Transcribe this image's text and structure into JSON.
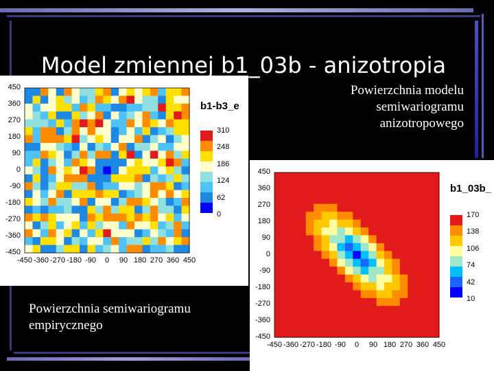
{
  "slide": {
    "title": "Model zmiennej b1_03b - anizotropia",
    "caption_model": "Powierzchnia modelu\nsemiwariogramu\nanizotropowego",
    "caption_empirical": "Powierzchnia semiwariogramu\nempirycznego"
  },
  "chart_data": [
    {
      "type": "heatmap",
      "title": "b1-b3_e",
      "x_ticks": [
        "-450",
        "-360",
        "-270",
        "-180",
        "-90",
        "0",
        "90",
        "180",
        "270",
        "360",
        "450"
      ],
      "y_ticks": [
        "450",
        "360",
        "270",
        "180",
        "90",
        "0",
        "-90",
        "-180",
        "-270",
        "-360",
        "-450"
      ],
      "legend_values": [
        "310",
        "248",
        "186",
        "124",
        "62",
        "0"
      ],
      "colors": [
        "#e31a1c",
        "#ff8c00",
        "#ffe000",
        "#ffffcc",
        "#90e0e0",
        "#4fc3f7",
        "#1e88e5",
        "#0000ff"
      ]
    },
    {
      "type": "heatmap",
      "title": "b1_03b_",
      "x_ticks": [
        "-450",
        "-360",
        "-270",
        "-180",
        "-90",
        "0",
        "90",
        "180",
        "270",
        "360",
        "450"
      ],
      "y_ticks": [
        "450",
        "360",
        "270",
        "180",
        "90",
        "0",
        "-90",
        "-180",
        "-270",
        "-360",
        "-450"
      ],
      "legend_values": [
        "170",
        "138",
        "106",
        "74",
        "42",
        "10"
      ],
      "colors": [
        "#e31a1c",
        "#ff8c00",
        "#ffc800",
        "#ffffa0",
        "#a0e6c8",
        "#00bfff",
        "#1e64ff",
        "#0000ff"
      ]
    }
  ]
}
